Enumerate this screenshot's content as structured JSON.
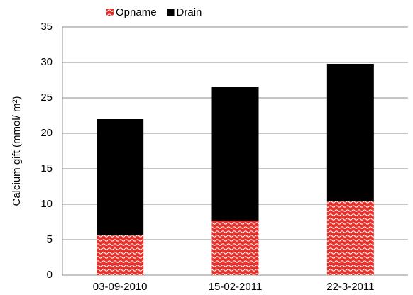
{
  "chart_data": {
    "type": "stacked-bar",
    "y_label": "Calcium gift (mmol/ m²)",
    "categories": [
      "03-09-2010",
      "15-02-2011",
      "22-3-2011"
    ],
    "series": [
      {
        "name": "Opname",
        "color": "#e8302a",
        "values": [
          5.6,
          7.7,
          10.4
        ]
      },
      {
        "name": "Drain",
        "color": "#000000",
        "values": [
          16.4,
          18.9,
          19.4
        ]
      }
    ],
    "ylim": [
      0,
      35
    ],
    "yticks": [
      0,
      5,
      10,
      15,
      20,
      25,
      30,
      35
    ],
    "grid": true,
    "legend": "top"
  }
}
